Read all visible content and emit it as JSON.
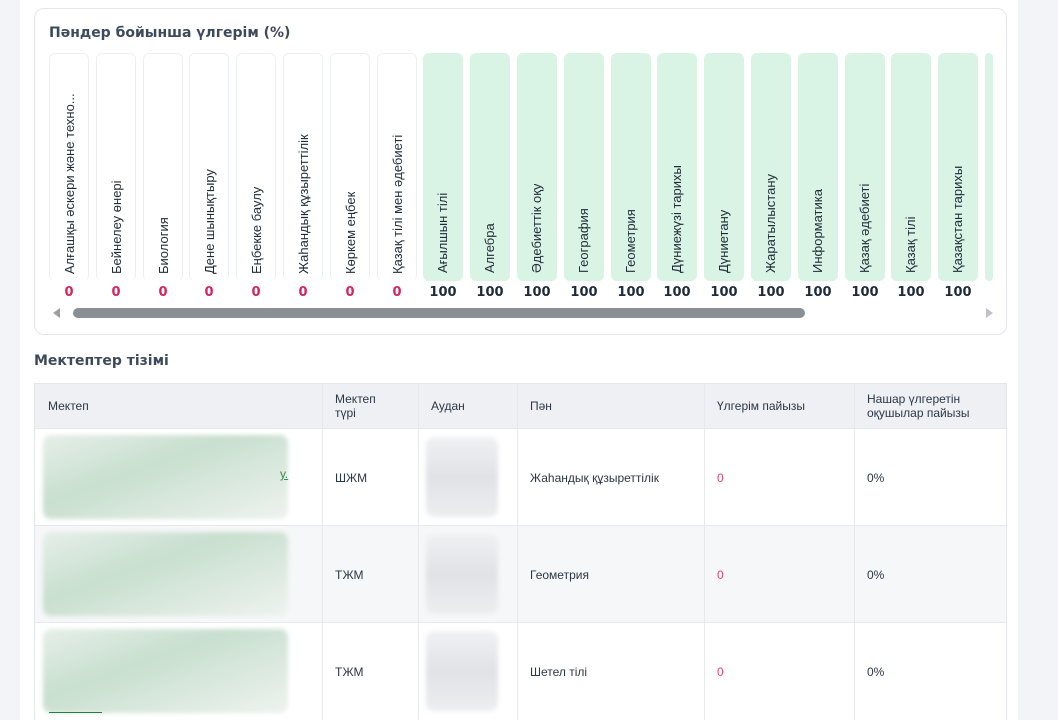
{
  "chart": {
    "title": "Пәндер бойынша үлгерім (%)"
  },
  "chart_data": {
    "type": "bar",
    "title": "Пәндер бойынша үлгерім (%)",
    "categories": [
      "Алғашқы әскери және техно...",
      "Бейнелеу өнері",
      "Биология",
      "Дене шынықтыру",
      "Еңбекке баулу",
      "Жаһандық құзыреттілік",
      "Көркем еңбек",
      "Қазақ тілі мен әдебиеті",
      "Ағылшын тілі",
      "Алгебра",
      "Әдебиеттік оқу",
      "География",
      "Геометрия",
      "Дүниежүзі тарихы",
      "Дүниетану",
      "Жаратылыстану",
      "Информатика",
      "Қазақ әдебиеті",
      "Қазақ тілі",
      "Қазақстан тарихы"
    ],
    "values": [
      0,
      0,
      0,
      0,
      0,
      0,
      0,
      0,
      100,
      100,
      100,
      100,
      100,
      100,
      100,
      100,
      100,
      100,
      100,
      100
    ],
    "value_labels": [
      "0",
      "0",
      "0",
      "0",
      "0",
      "0",
      "0",
      "0",
      "100",
      "100",
      "100",
      "100",
      "100",
      "100",
      "100",
      "100",
      "100",
      "100",
      "100",
      "100"
    ],
    "ylim": [
      0,
      100
    ]
  },
  "colors": {
    "zero_value": "#d6245e",
    "full_bar": "#d9f3e5",
    "header_bg": "#eef0f4"
  },
  "schools": {
    "section_title": "Мектептер тізімі",
    "headers": [
      "Мектеп",
      "Мектеп түрі",
      "Аудан",
      "Пән",
      "Үлгерім пайызы",
      "Нашар үлгеретін оқушылар пайызы"
    ],
    "rows": [
      {
        "school_tail": "у.",
        "type": "ШЖМ",
        "subject": "Жаһандық құзыреттілік",
        "performance": "0",
        "weak_percent": "0%"
      },
      {
        "school_tail": "",
        "type": "ТЖМ",
        "subject": "Геометрия",
        "performance": "0",
        "weak_percent": "0%"
      },
      {
        "school_tail": "",
        "type": "ТЖМ",
        "subject": "Шетел тілі",
        "performance": "0",
        "weak_percent": "0%"
      }
    ]
  }
}
